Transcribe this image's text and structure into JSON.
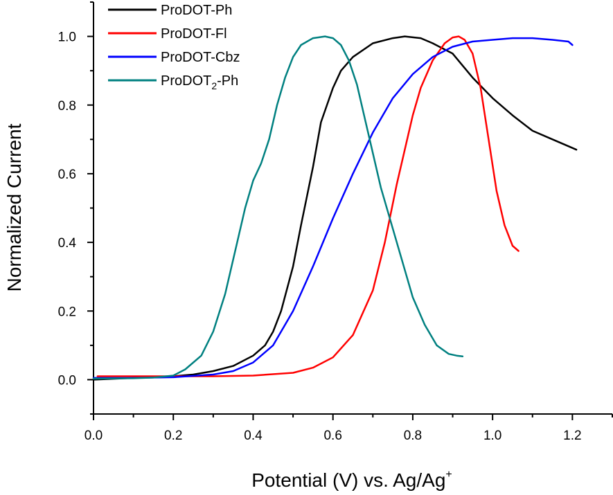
{
  "chart_data": {
    "type": "line",
    "title": "",
    "xlabel": "Potential (V) vs. Ag/Ag",
    "xlabel_sup": "+",
    "ylabel": "Normalized Current",
    "xlim": [
      0.0,
      1.3
    ],
    "ylim": [
      -0.1,
      1.1
    ],
    "xticks": [
      0.0,
      0.2,
      0.4,
      0.6,
      0.8,
      1.0,
      1.2
    ],
    "xtick_labels": [
      "0.0",
      "0.2",
      "0.4",
      "0.6",
      "0.8",
      "1.0",
      "1.2"
    ],
    "yticks": [
      0.0,
      0.2,
      0.4,
      0.6,
      0.8,
      1.0
    ],
    "ytick_labels": [
      "0.0",
      "0.2",
      "0.4",
      "0.6",
      "0.8",
      "1.0"
    ],
    "grid": false,
    "legend_position": "top-left",
    "series": [
      {
        "name": "ProDOT-Ph",
        "color": "#000000",
        "points": [
          [
            0.0,
            0.0
          ],
          [
            0.1,
            0.005
          ],
          [
            0.2,
            0.01
          ],
          [
            0.25,
            0.015
          ],
          [
            0.3,
            0.025
          ],
          [
            0.35,
            0.04
          ],
          [
            0.4,
            0.07
          ],
          [
            0.43,
            0.1
          ],
          [
            0.45,
            0.14
          ],
          [
            0.47,
            0.2
          ],
          [
            0.5,
            0.33
          ],
          [
            0.52,
            0.45
          ],
          [
            0.55,
            0.62
          ],
          [
            0.57,
            0.75
          ],
          [
            0.6,
            0.85
          ],
          [
            0.62,
            0.9
          ],
          [
            0.65,
            0.94
          ],
          [
            0.7,
            0.98
          ],
          [
            0.75,
            0.995
          ],
          [
            0.78,
            1.0
          ],
          [
            0.82,
            0.995
          ],
          [
            0.85,
            0.98
          ],
          [
            0.9,
            0.95
          ],
          [
            0.95,
            0.88
          ],
          [
            1.0,
            0.82
          ],
          [
            1.05,
            0.77
          ],
          [
            1.1,
            0.725
          ],
          [
            1.15,
            0.7
          ],
          [
            1.2,
            0.675
          ],
          [
            1.21,
            0.67
          ]
        ]
      },
      {
        "name": "ProDOT-Fl",
        "name_sub": "",
        "color": "#ff0000",
        "points": [
          [
            0.01,
            0.01
          ],
          [
            0.1,
            0.01
          ],
          [
            0.2,
            0.01
          ],
          [
            0.3,
            0.01
          ],
          [
            0.4,
            0.012
          ],
          [
            0.5,
            0.02
          ],
          [
            0.55,
            0.035
          ],
          [
            0.6,
            0.065
          ],
          [
            0.65,
            0.13
          ],
          [
            0.7,
            0.26
          ],
          [
            0.73,
            0.4
          ],
          [
            0.76,
            0.57
          ],
          [
            0.78,
            0.67
          ],
          [
            0.8,
            0.77
          ],
          [
            0.82,
            0.85
          ],
          [
            0.85,
            0.93
          ],
          [
            0.88,
            0.98
          ],
          [
            0.9,
            0.997
          ],
          [
            0.915,
            1.0
          ],
          [
            0.93,
            0.99
          ],
          [
            0.95,
            0.95
          ],
          [
            0.97,
            0.85
          ],
          [
            0.99,
            0.7
          ],
          [
            1.01,
            0.55
          ],
          [
            1.03,
            0.45
          ],
          [
            1.05,
            0.39
          ],
          [
            1.065,
            0.375
          ]
        ]
      },
      {
        "name": "ProDOT-Cbz",
        "color": "#0000ff",
        "points": [
          [
            0.0,
            0.005
          ],
          [
            0.1,
            0.005
          ],
          [
            0.2,
            0.007
          ],
          [
            0.3,
            0.015
          ],
          [
            0.35,
            0.025
          ],
          [
            0.4,
            0.05
          ],
          [
            0.45,
            0.1
          ],
          [
            0.5,
            0.2
          ],
          [
            0.55,
            0.33
          ],
          [
            0.6,
            0.47
          ],
          [
            0.65,
            0.6
          ],
          [
            0.7,
            0.72
          ],
          [
            0.75,
            0.82
          ],
          [
            0.8,
            0.89
          ],
          [
            0.85,
            0.94
          ],
          [
            0.9,
            0.97
          ],
          [
            0.95,
            0.985
          ],
          [
            1.0,
            0.99
          ],
          [
            1.05,
            0.995
          ],
          [
            1.1,
            0.995
          ],
          [
            1.15,
            0.99
          ],
          [
            1.19,
            0.985
          ],
          [
            1.2,
            0.975
          ]
        ]
      },
      {
        "name": "ProDOT",
        "name_sub": "2",
        "name_suffix": "-Ph",
        "color": "#008080",
        "points": [
          [
            0.0,
            0.003
          ],
          [
            0.1,
            0.004
          ],
          [
            0.15,
            0.006
          ],
          [
            0.2,
            0.012
          ],
          [
            0.23,
            0.03
          ],
          [
            0.27,
            0.07
          ],
          [
            0.3,
            0.14
          ],
          [
            0.33,
            0.25
          ],
          [
            0.36,
            0.4
          ],
          [
            0.38,
            0.5
          ],
          [
            0.4,
            0.58
          ],
          [
            0.42,
            0.63
          ],
          [
            0.44,
            0.7
          ],
          [
            0.46,
            0.8
          ],
          [
            0.48,
            0.88
          ],
          [
            0.5,
            0.94
          ],
          [
            0.52,
            0.975
          ],
          [
            0.55,
            0.995
          ],
          [
            0.58,
            1.0
          ],
          [
            0.6,
            0.995
          ],
          [
            0.62,
            0.975
          ],
          [
            0.64,
            0.93
          ],
          [
            0.66,
            0.86
          ],
          [
            0.68,
            0.76
          ],
          [
            0.7,
            0.66
          ],
          [
            0.72,
            0.56
          ],
          [
            0.75,
            0.44
          ],
          [
            0.78,
            0.32
          ],
          [
            0.8,
            0.24
          ],
          [
            0.83,
            0.16
          ],
          [
            0.86,
            0.1
          ],
          [
            0.89,
            0.075
          ],
          [
            0.91,
            0.07
          ],
          [
            0.925,
            0.068
          ]
        ]
      }
    ]
  }
}
